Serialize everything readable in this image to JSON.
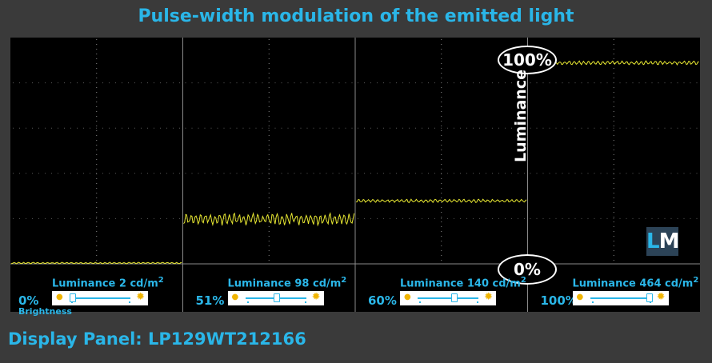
{
  "title": "Pulse-width modulation of the emitted light",
  "footer": "Display Panel: LP129WT212166",
  "logo": "LM",
  "axis_label": "Luminance",
  "marker_top": "100%",
  "marker_zero": "0%",
  "brightness_label": "Brightness",
  "chart_data": {
    "type": "line",
    "title": "Pulse-width modulation of the emitted light",
    "ylabel": "Luminance",
    "ylim": [
      0,
      100
    ],
    "grid": true,
    "series": [
      {
        "brightness": "0%",
        "luminance_label": "Luminance",
        "luminance_value": "2 cd/m",
        "level_percent": 0.4,
        "ripple": 0.3
      },
      {
        "brightness": "51%",
        "luminance_label": "Luminance",
        "luminance_value": "98 cd/m",
        "level_percent": 22,
        "ripple": 2.5
      },
      {
        "brightness": "60%",
        "luminance_label": "Luminance",
        "luminance_value": "140 cd/m",
        "level_percent": 31,
        "ripple": 0.7
      },
      {
        "brightness": "100%",
        "luminance_label": "Luminance",
        "luminance_value": "464 cd/m",
        "level_percent": 99,
        "ripple": 0.8
      }
    ],
    "slider_positions": [
      0.0,
      0.51,
      0.6,
      1.0
    ]
  },
  "colors": {
    "accent": "#2ab6e8",
    "trace": "#e8e832",
    "grid": "#8a8a8a",
    "background": "#000000"
  }
}
